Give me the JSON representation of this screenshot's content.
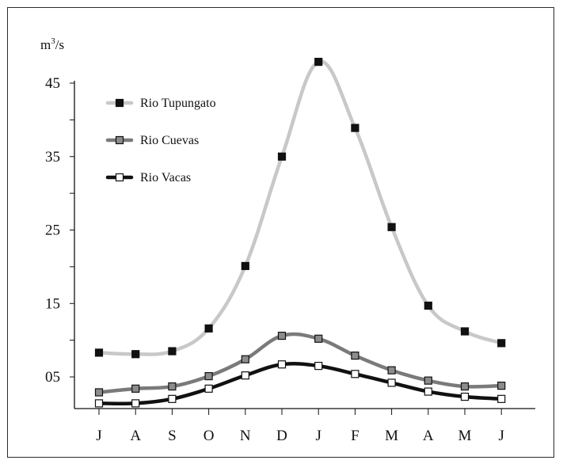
{
  "chart_data": {
    "type": "line",
    "title": "",
    "xlabel": "",
    "ylabel": "",
    "y_unit": {
      "base": "m",
      "exponent": "3",
      "suffix": "/s"
    },
    "categories": [
      "J",
      "A",
      "S",
      "O",
      "N",
      "D",
      "J",
      "F",
      "M",
      "A",
      "M",
      "J"
    ],
    "yticks": [
      {
        "value": 5,
        "label": "05"
      },
      {
        "value": 15,
        "label": "15"
      },
      {
        "value": 25,
        "label": "25"
      },
      {
        "value": 35,
        "label": "35"
      },
      {
        "value": 45,
        "label": "45"
      }
    ],
    "ylim": [
      0,
      50
    ],
    "grid": false,
    "legend_position": "top-left",
    "series": [
      {
        "name": "Rio Tupungato",
        "line_color": "#c8c8c8",
        "marker_fill": "#111111",
        "values": [
          8.3,
          8.1,
          8.5,
          11.6,
          20.1,
          35.0,
          47.9,
          38.9,
          25.4,
          14.7,
          11.2,
          9.6
        ]
      },
      {
        "name": "Rio Cuevas",
        "line_color": "#7a7a7a",
        "marker_fill": "#8c8c8c",
        "values": [
          2.9,
          3.4,
          3.7,
          5.1,
          7.4,
          10.6,
          10.2,
          7.9,
          5.9,
          4.5,
          3.7,
          3.8
        ]
      },
      {
        "name": "Rio Vacas",
        "line_color": "#111111",
        "marker_fill": "#ffffff",
        "values": [
          1.4,
          1.4,
          2.0,
          3.4,
          5.2,
          6.7,
          6.5,
          5.4,
          4.2,
          3.0,
          2.3,
          2.0
        ]
      }
    ]
  }
}
